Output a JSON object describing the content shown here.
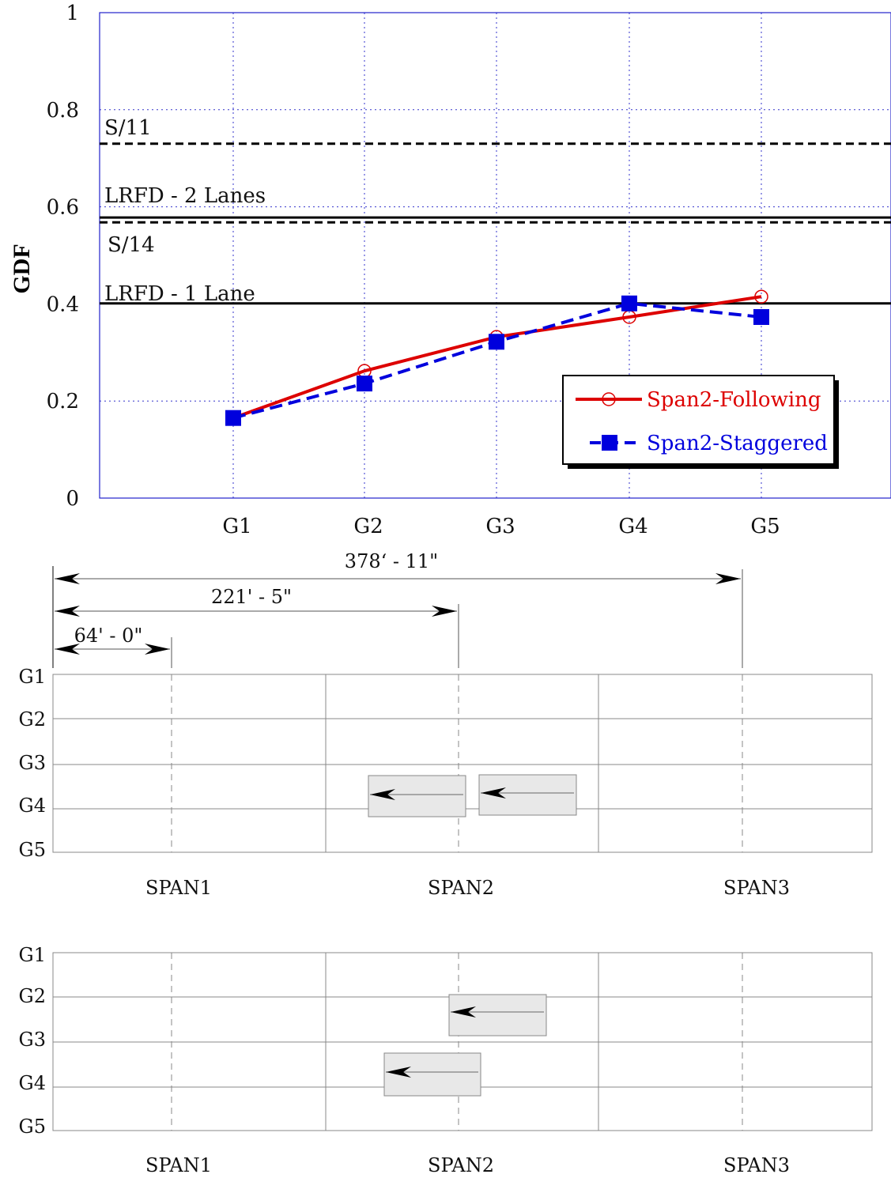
{
  "chart_data": [
    {
      "type": "line",
      "title": "",
      "xlabel": "",
      "ylabel": "GDF",
      "categories": [
        "G1",
        "G2",
        "G3",
        "G4",
        "G5"
      ],
      "ylim": [
        0,
        1
      ],
      "yticks": [
        "0",
        "0.2",
        "0.4",
        "0.6",
        "0.8",
        "1"
      ],
      "grid": true,
      "legend_position": "lower-right",
      "series": [
        {
          "name": "Span2-Following",
          "values": [
            0.165,
            0.262,
            0.332,
            0.373,
            0.415
          ],
          "color": "#dd0000",
          "style": "solid",
          "marker": "circle"
        },
        {
          "name": "Span2-Staggered",
          "values": [
            0.165,
            0.236,
            0.322,
            0.401,
            0.373
          ],
          "color": "#0000dd",
          "style": "dashed",
          "marker": "square"
        }
      ],
      "reference_lines": [
        {
          "label": "S/11",
          "value": 0.73,
          "style": "dashed"
        },
        {
          "label": "LRFD - 2 Lanes",
          "value": 0.578,
          "style": "solid"
        },
        {
          "label": "S/14",
          "value": 0.568,
          "style": "dashed"
        },
        {
          "label": "LRFD - 1 Lane",
          "value": 0.401,
          "style": "solid"
        }
      ]
    }
  ],
  "dimensions": [
    {
      "label": "378‘ - 11\""
    },
    {
      "label": "221' - 5\""
    },
    {
      "label": "64' - 0\""
    }
  ],
  "girders": [
    "G1",
    "G2",
    "G3",
    "G4",
    "G5"
  ],
  "spans": [
    "SPAN1",
    "SPAN2",
    "SPAN3"
  ],
  "diagrams": [
    {
      "name": "following",
      "trucks": [
        {
          "girder": "G4"
        },
        {
          "girder": "G4"
        }
      ]
    },
    {
      "name": "staggered",
      "trucks": [
        {
          "girder": "G2"
        },
        {
          "girder": "G4"
        }
      ]
    }
  ]
}
